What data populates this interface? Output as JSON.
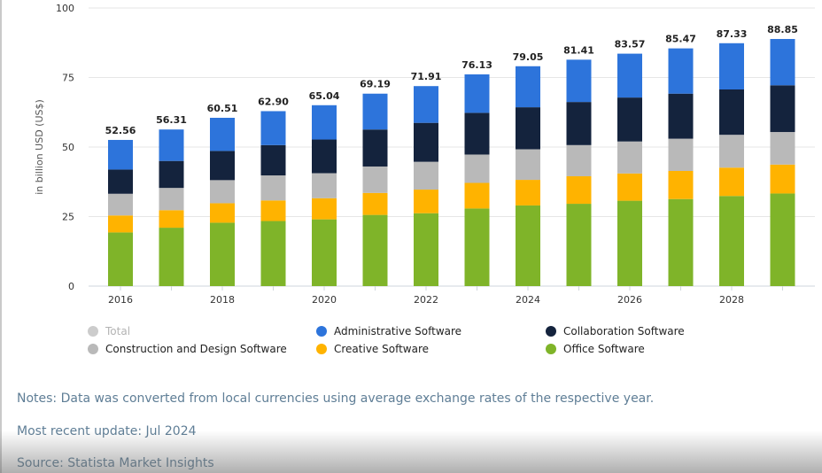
{
  "chart_data": {
    "type": "bar",
    "stacked": true,
    "ylabel": "in billion USD (US$)",
    "ylim": [
      0,
      100
    ],
    "yticks": [
      0,
      25,
      50,
      75,
      100
    ],
    "categories": [
      "2016",
      "2017",
      "2018",
      "2019",
      "2020",
      "2021",
      "2022",
      "2023",
      "2024",
      "2025",
      "2026",
      "2027",
      "2028",
      "2029"
    ],
    "x_tick_labels": [
      "2016",
      "",
      "2018",
      "",
      "2020",
      "",
      "2022",
      "",
      "2024",
      "",
      "2026",
      "",
      "2028",
      ""
    ],
    "totals": [
      52.56,
      56.31,
      60.51,
      62.9,
      65.04,
      69.19,
      71.91,
      76.13,
      79.05,
      81.41,
      83.57,
      85.47,
      87.33,
      88.85
    ],
    "total_labels": [
      "52.56",
      "56.31",
      "60.51",
      "62.90",
      "65.04",
      "69.19",
      "71.91",
      "76.13",
      "79.05",
      "81.41",
      "83.57",
      "85.47",
      "87.33",
      "88.85"
    ],
    "series": [
      {
        "name": "Office Software",
        "color": "#7fb429",
        "values": [
          19.3,
          21.0,
          22.8,
          23.4,
          24.0,
          25.6,
          26.2,
          27.9,
          29.0,
          29.6,
          30.7,
          31.3,
          32.4,
          33.3
        ]
      },
      {
        "name": "Creative Software",
        "color": "#ffb300",
        "values": [
          6.1,
          6.3,
          7.0,
          7.4,
          7.6,
          7.9,
          8.5,
          9.2,
          9.2,
          9.9,
          9.8,
          10.1,
          10.2,
          10.4
        ]
      },
      {
        "name": "Construction and Design Software",
        "color": "#b9b9b9",
        "values": [
          7.8,
          8.0,
          8.3,
          9.0,
          9.0,
          9.5,
          10.0,
          10.2,
          11.0,
          11.2,
          11.5,
          11.6,
          11.8,
          11.7
        ]
      },
      {
        "name": "Collaboration Software",
        "color": "#14233d",
        "values": [
          8.7,
          9.7,
          10.5,
          10.9,
          12.1,
          13.3,
          14.0,
          15.0,
          15.1,
          15.5,
          15.8,
          16.2,
          16.3,
          16.8
        ]
      },
      {
        "name": "Administrative Software",
        "color": "#2d74db",
        "values": [
          10.66,
          11.31,
          11.91,
          12.2,
          12.34,
          12.89,
          13.21,
          13.83,
          14.75,
          15.21,
          15.77,
          16.27,
          16.63,
          16.65
        ]
      }
    ]
  },
  "legend": [
    {
      "label": "Total",
      "color": "#cccccc",
      "muted": true
    },
    {
      "label": "Administrative Software",
      "color": "#2d74db",
      "muted": false
    },
    {
      "label": "Collaboration Software",
      "color": "#14233d",
      "muted": false
    },
    {
      "label": "Construction and Design Software",
      "color": "#b9b9b9",
      "muted": false
    },
    {
      "label": "Creative Software",
      "color": "#ffb300",
      "muted": false
    },
    {
      "label": "Office Software",
      "color": "#7fb429",
      "muted": false
    }
  ],
  "footer": {
    "notes": "Notes: Data was converted from local currencies using average exchange rates of the respective year.",
    "update": "Most recent update: Jul 2024",
    "source": "Source: Statista Market Insights"
  }
}
